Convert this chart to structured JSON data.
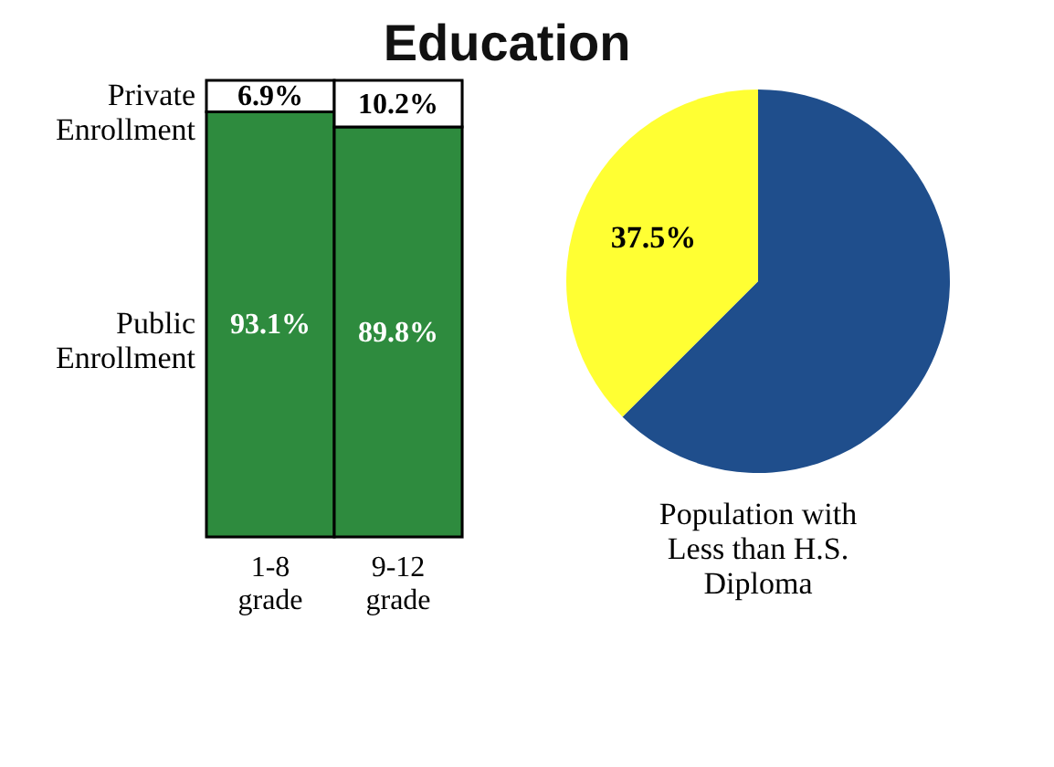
{
  "chart_data": [
    {
      "type": "bar",
      "title": "Education",
      "stacked": true,
      "categories": [
        "1-8 grade",
        "9-12 grade"
      ],
      "series": [
        {
          "name": "Public Enrollment",
          "color": "#2e8b3e",
          "values": [
            93.1,
            89.8
          ],
          "value_labels": [
            "93.1%",
            "89.8%"
          ]
        },
        {
          "name": "Private Enrollment",
          "color": "#ffffff",
          "values": [
            6.9,
            10.2
          ],
          "value_labels": [
            "6.9%",
            "10.2%"
          ]
        }
      ],
      "legend": false
    },
    {
      "type": "pie",
      "title": "Population with Less than H.S. Diploma",
      "categories": [
        null,
        null
      ],
      "values": [
        62.5,
        37.5
      ],
      "colors": [
        "#1f4e8c",
        "#ffff33"
      ],
      "value_labels": [
        null,
        "37.5%"
      ],
      "legend": false
    }
  ]
}
